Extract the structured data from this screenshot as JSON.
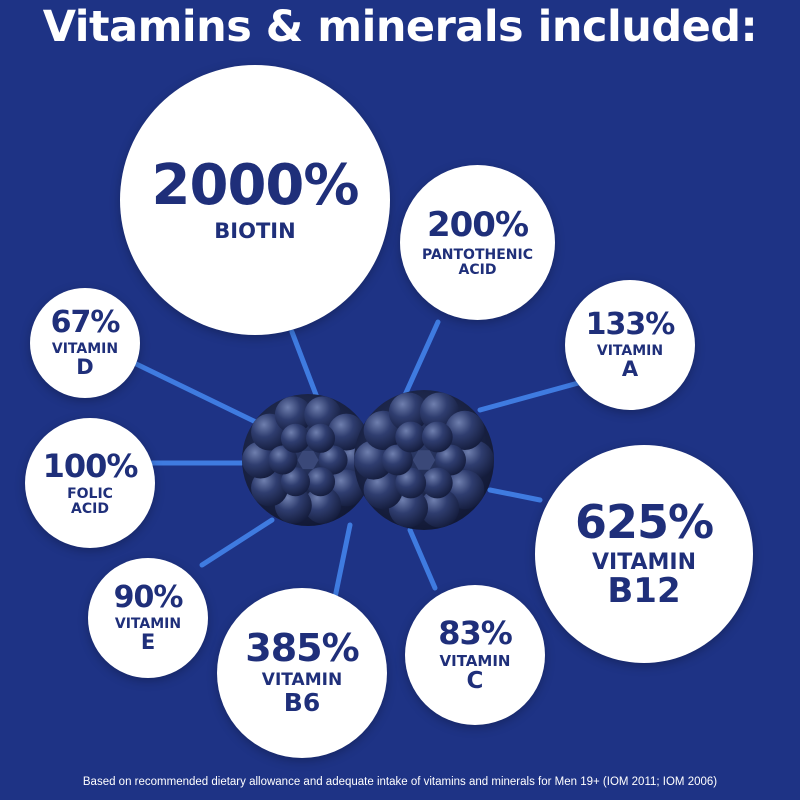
{
  "title": "Vitamins & minerals included:",
  "colors": {
    "background": "#1e3385",
    "bubble": "#ffffff",
    "text": "#1f2f7a",
    "connector": "#3f7be0",
    "gummy": "#2a3a6a"
  },
  "nutrients": [
    {
      "id": "biotin",
      "percent": "2000%",
      "label_lines": [
        "BIOTIN"
      ]
    },
    {
      "id": "pantothenic-acid",
      "percent": "200%",
      "label_lines": [
        "PANTOTHENIC",
        "ACID"
      ]
    },
    {
      "id": "vitamin-d",
      "percent": "67%",
      "label_lines": [
        "VITAMIN",
        "D"
      ]
    },
    {
      "id": "vitamin-a",
      "percent": "133%",
      "label_lines": [
        "VITAMIN",
        "A"
      ]
    },
    {
      "id": "folic-acid",
      "percent": "100%",
      "label_lines": [
        "FOLIC",
        "ACID"
      ]
    },
    {
      "id": "vitamin-b12",
      "percent": "625%",
      "label_lines": [
        "VITAMIN",
        "B12"
      ]
    },
    {
      "id": "vitamin-e",
      "percent": "90%",
      "label_lines": [
        "VITAMIN",
        "E"
      ]
    },
    {
      "id": "vitamin-b6",
      "percent": "385%",
      "label_lines": [
        "VITAMIN",
        "B6"
      ]
    },
    {
      "id": "vitamin-c",
      "percent": "83%",
      "label_lines": [
        "VITAMIN",
        "C"
      ]
    }
  ],
  "footnote": "Based on recommended dietary allowance and adequate intake of vitamins and minerals for Men 19+ (IOM 2011; IOM 2006)"
}
